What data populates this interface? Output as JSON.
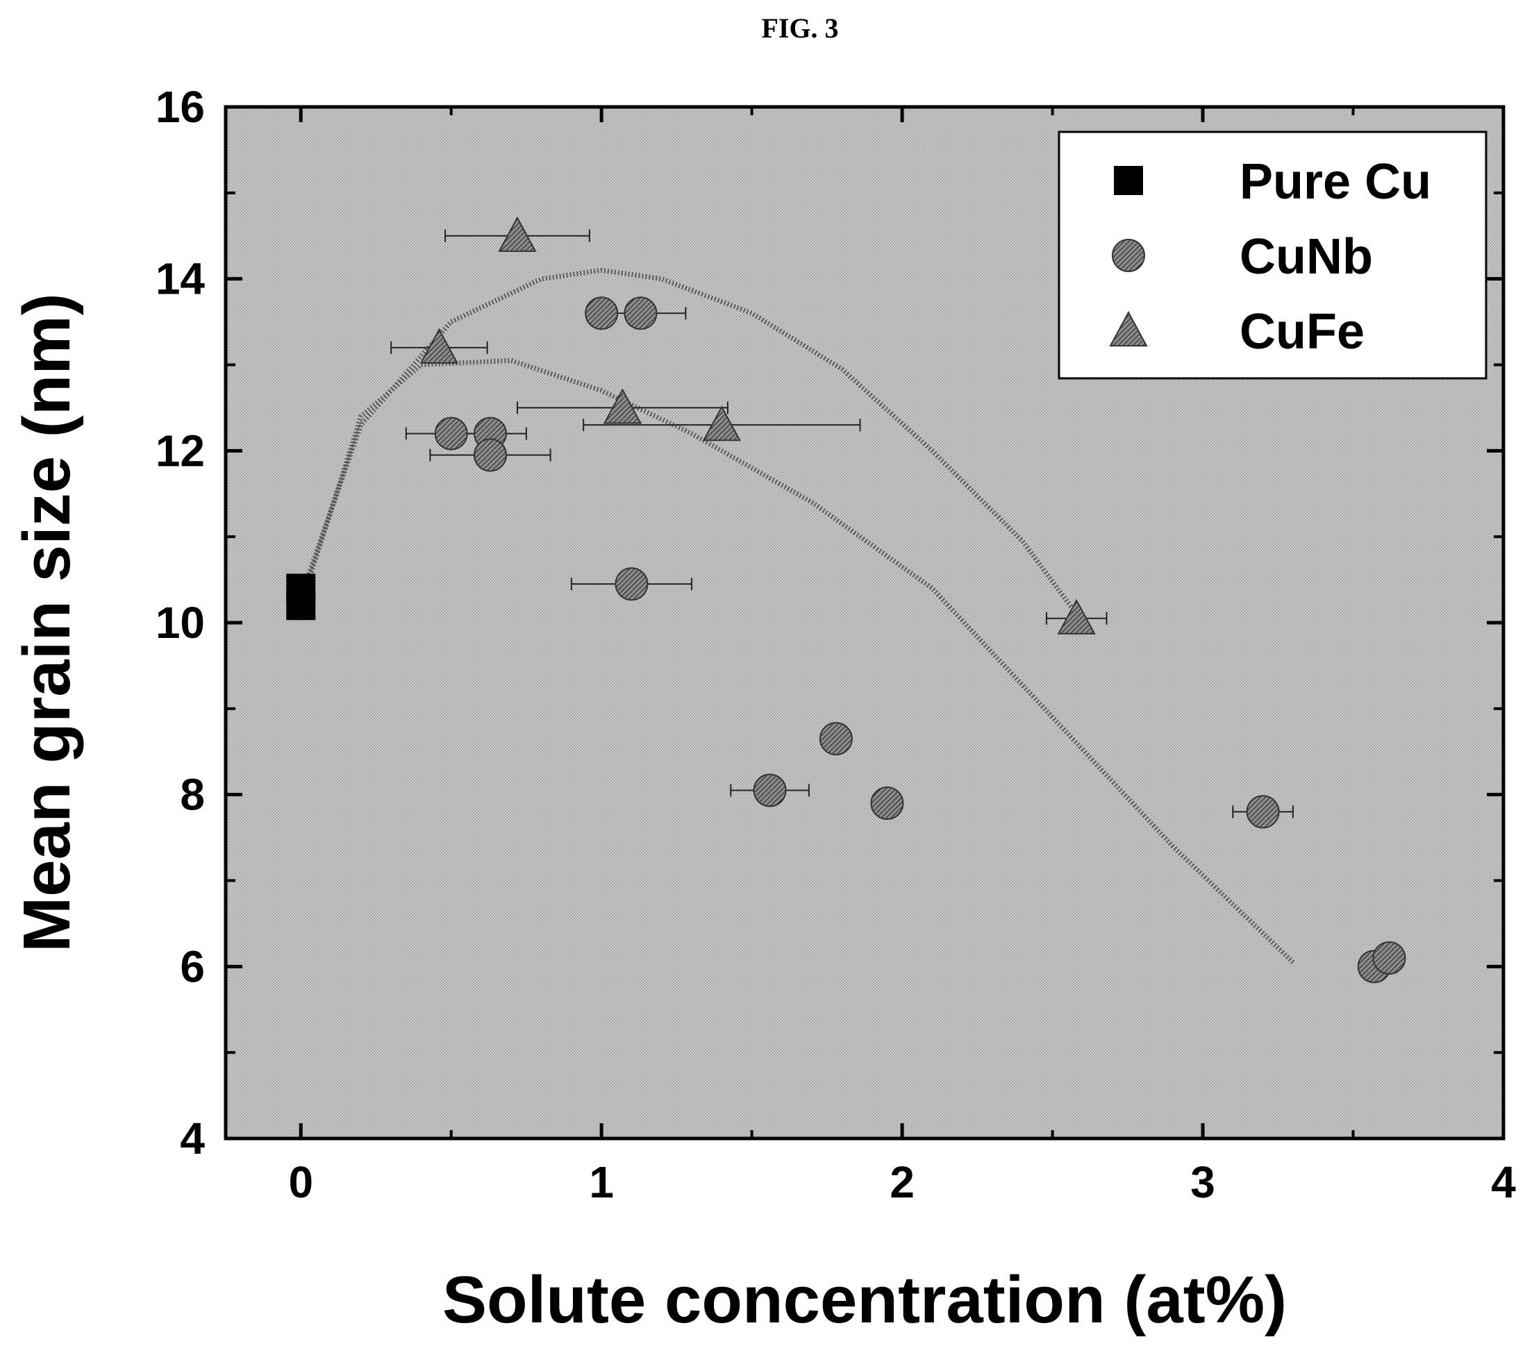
{
  "figure_label": "FIG. 3",
  "chart_data": {
    "type": "scatter",
    "title": "",
    "xlabel": "Solute concentration (at%)",
    "ylabel": "Mean grain size (nm)",
    "xlim": [
      -0.25,
      4
    ],
    "ylim": [
      4,
      16
    ],
    "xticks": [
      0,
      1,
      2,
      3,
      4
    ],
    "yticks": [
      4,
      6,
      8,
      10,
      12,
      14,
      16
    ],
    "legend_position": "top-right",
    "grid": false,
    "background": "stippled gray",
    "series": [
      {
        "name": "Pure Cu",
        "marker": "square",
        "points": [
          {
            "x": 0.0,
            "y": 10.2
          },
          {
            "x": 0.0,
            "y": 10.4
          }
        ]
      },
      {
        "name": "CuNb",
        "marker": "circle",
        "points": [
          {
            "x": 1.0,
            "y": 13.6
          },
          {
            "x": 1.13,
            "y": 13.6,
            "xerr": 0.15
          },
          {
            "x": 0.5,
            "y": 12.2,
            "xerr": 0.15
          },
          {
            "x": 0.63,
            "y": 12.2,
            "xerr": 0.12
          },
          {
            "x": 0.63,
            "y": 11.95,
            "xerr": 0.2
          },
          {
            "x": 1.1,
            "y": 10.45,
            "xerr": 0.2
          },
          {
            "x": 1.78,
            "y": 8.65
          },
          {
            "x": 1.56,
            "y": 8.05,
            "xerr": 0.13
          },
          {
            "x": 1.95,
            "y": 7.9
          },
          {
            "x": 3.2,
            "y": 7.8,
            "xerr": 0.1
          },
          {
            "x": 3.57,
            "y": 6.0
          },
          {
            "x": 3.62,
            "y": 6.1
          }
        ]
      },
      {
        "name": "CuFe",
        "marker": "triangle",
        "points": [
          {
            "x": 0.72,
            "y": 14.5,
            "xerr": 0.24
          },
          {
            "x": 0.46,
            "y": 13.2,
            "xerr": 0.16
          },
          {
            "x": 1.07,
            "y": 12.5,
            "xerr": 0.35
          },
          {
            "x": 1.4,
            "y": 12.3,
            "xerr": 0.46
          },
          {
            "x": 2.58,
            "y": 10.05,
            "xerr": 0.1
          }
        ]
      }
    ],
    "trend_lines": [
      {
        "style": "dotted",
        "points": [
          [
            0.0,
            10.3
          ],
          [
            0.2,
            12.3
          ],
          [
            0.5,
            13.5
          ],
          [
            0.8,
            14.0
          ],
          [
            1.0,
            14.1
          ],
          [
            1.2,
            14.0
          ],
          [
            1.5,
            13.6
          ],
          [
            1.8,
            12.95
          ],
          [
            2.1,
            12.0
          ],
          [
            2.4,
            10.95
          ],
          [
            2.58,
            10.1
          ]
        ]
      },
      {
        "style": "dotted",
        "points": [
          [
            0.0,
            10.2
          ],
          [
            0.2,
            12.4
          ],
          [
            0.4,
            13.0
          ],
          [
            0.7,
            13.05
          ],
          [
            1.0,
            12.7
          ],
          [
            1.3,
            12.2
          ],
          [
            1.7,
            11.4
          ],
          [
            2.1,
            10.4
          ],
          [
            2.5,
            8.9
          ],
          [
            2.9,
            7.4
          ],
          [
            3.3,
            6.05
          ]
        ]
      }
    ]
  }
}
